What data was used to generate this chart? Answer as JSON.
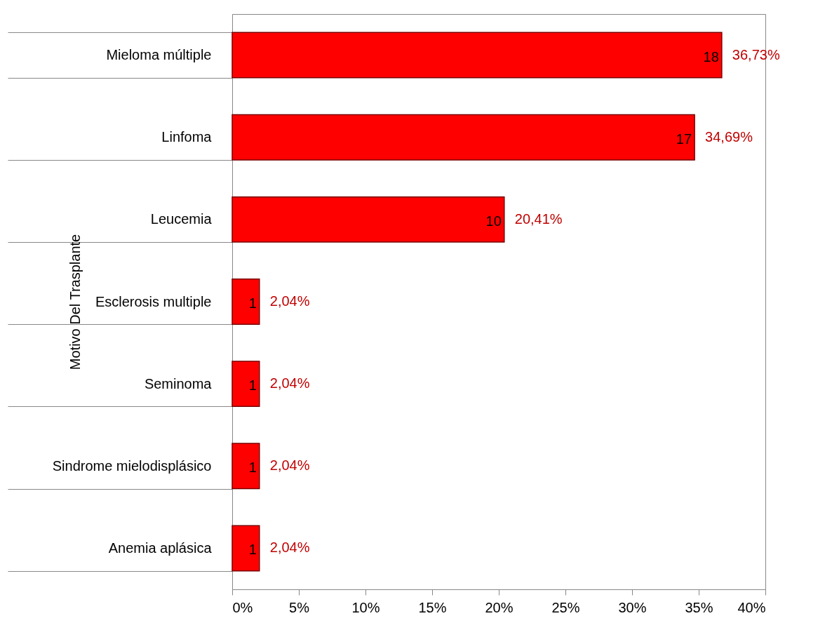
{
  "chart_data": {
    "type": "bar",
    "orientation": "horizontal",
    "ylabel": "Motivo Del Trasplante",
    "categories": [
      "Mieloma múltiple",
      "Linfoma",
      "Leucemia",
      "Esclerosis multiple",
      "Seminoma",
      "Sindrome mielodisplásico",
      "Anemia aplásica"
    ],
    "values": [
      36.73,
      34.69,
      20.41,
      2.04,
      2.04,
      2.04,
      2.04
    ],
    "value_labels": [
      "36,73%",
      "34,69%",
      "20,41%",
      "2,04%",
      "2,04%",
      "2,04%",
      "2,04%"
    ],
    "color": "#ff0000",
    "xlim": [
      0,
      40
    ],
    "xticks": [
      {
        "value": 0,
        "label": "0%"
      },
      {
        "value": 5,
        "label": "5%"
      },
      {
        "value": 10,
        "label": "10%"
      },
      {
        "value": 15,
        "label": "15%"
      },
      {
        "value": 20,
        "label": "20%"
      },
      {
        "value": 25,
        "label": "25%"
      },
      {
        "value": 30,
        "label": "30%"
      },
      {
        "value": 35,
        "label": "35%"
      },
      {
        "value": 40,
        "label": "40%"
      }
    ],
    "annotations": [
      {
        "text": "18",
        "x": 36.73,
        "y": "Mieloma múltiple"
      },
      {
        "text": "17",
        "x": 34.69,
        "y": "Linfoma"
      },
      {
        "text": "10",
        "x": 20.41,
        "y": "Leucemia"
      },
      {
        "text": "1",
        "x": 2.04,
        "y": "Esclerosis multiple"
      },
      {
        "text": "1",
        "x": 2.04,
        "y": "Seminoma"
      },
      {
        "text": "1",
        "x": 2.04,
        "y": "Sindrome mielodisplásico"
      },
      {
        "text": "1",
        "x": 2.04,
        "y": "Anemia aplásica"
      }
    ]
  }
}
